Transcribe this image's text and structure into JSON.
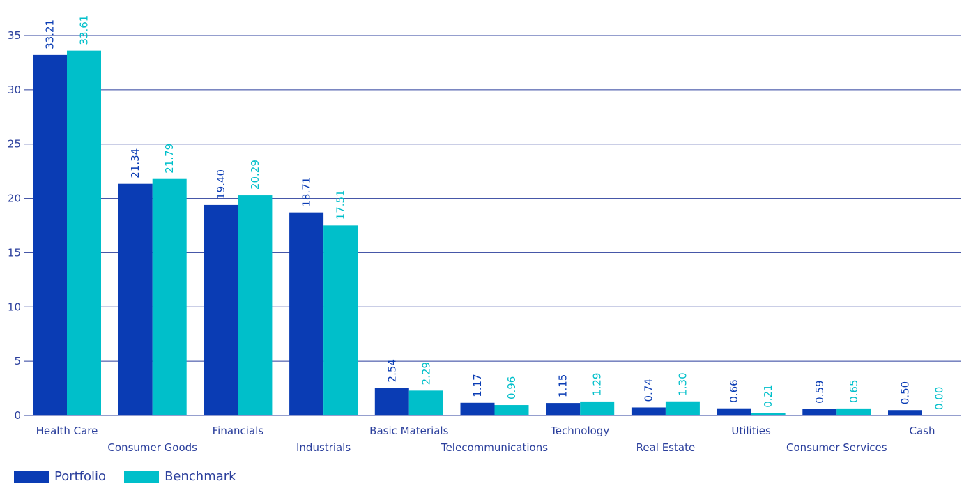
{
  "chart_data": {
    "type": "bar",
    "categories": [
      "Health Care",
      "Consumer Goods",
      "Financials",
      "Industrials",
      "Basic Materials",
      "Telecommunications",
      "Technology",
      "Real Estate",
      "Utilities",
      "Consumer Services",
      "Cash"
    ],
    "series": [
      {
        "name": "Portfolio",
        "color": "#0a3cb4",
        "values": [
          33.21,
          21.34,
          19.4,
          18.71,
          2.54,
          1.17,
          1.15,
          0.74,
          0.66,
          0.59,
          0.5
        ],
        "labels": [
          "33.21",
          "21.34",
          "19.40",
          "18.71",
          "2.54",
          "1.17",
          "1.15",
          "0.74",
          "0.66",
          "0.59",
          "0.50"
        ]
      },
      {
        "name": "Benchmark",
        "color": "#00bfca",
        "values": [
          33.61,
          21.79,
          20.29,
          17.51,
          2.29,
          0.96,
          1.29,
          1.3,
          0.21,
          0.65,
          0.0
        ],
        "labels": [
          "33.61",
          "21.79",
          "20.29",
          "17.51",
          "2.29",
          "0.96",
          "1.29",
          "1.30",
          "0.21",
          "0.65",
          "0.00"
        ]
      }
    ],
    "yticks": [
      "0",
      "5",
      "10",
      "15",
      "20",
      "25",
      "30",
      "35"
    ],
    "ylim": [
      0,
      35
    ],
    "grid": true,
    "legend_position": "bottom-left",
    "axis_color": "#2b3f9c"
  }
}
